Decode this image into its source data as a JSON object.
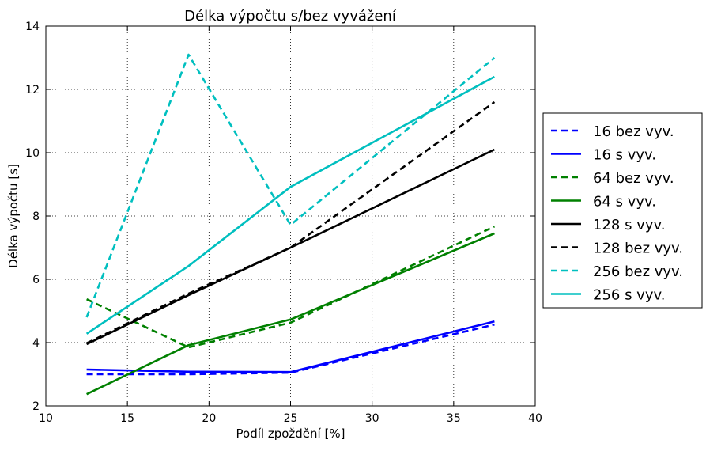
{
  "chart_data": {
    "type": "line",
    "title": "Délka výpočtu s/bez vyvážení",
    "xlabel": "Podíl zpoždění [%]",
    "ylabel": "Délka výpočtu [s]",
    "xlim": [
      10,
      40
    ],
    "ylim": [
      2,
      14
    ],
    "xticks": [
      10,
      15,
      20,
      25,
      30,
      35,
      40
    ],
    "yticks": [
      2,
      4,
      6,
      8,
      10,
      12,
      14
    ],
    "grid": true,
    "legend_position": "right-outside",
    "series": [
      {
        "name": "16 bez vyv.",
        "color": "#0000ff",
        "dashed": true,
        "x": [
          12.5,
          18.75,
          25,
          37.5
        ],
        "y": [
          3.0,
          3.0,
          3.05,
          4.57
        ]
      },
      {
        "name": "16 s vyv.",
        "color": "#0000ff",
        "dashed": false,
        "x": [
          12.5,
          18.75,
          25,
          37.5
        ],
        "y": [
          3.15,
          3.08,
          3.07,
          4.67
        ]
      },
      {
        "name": "64 bez vyv.",
        "color": "#008000",
        "dashed": true,
        "x": [
          12.5,
          18.75,
          25,
          37.5
        ],
        "y": [
          5.37,
          3.85,
          4.63,
          7.67
        ]
      },
      {
        "name": "64 s vyv.",
        "color": "#008000",
        "dashed": false,
        "x": [
          12.5,
          18.75,
          25,
          37.5
        ],
        "y": [
          2.37,
          3.92,
          4.73,
          7.45
        ]
      },
      {
        "name": "128 s vyv.",
        "color": "#000000",
        "dashed": false,
        "x": [
          12.5,
          18.75,
          25,
          37.5
        ],
        "y": [
          3.95,
          5.5,
          7.0,
          10.1
        ]
      },
      {
        "name": "128 bez vyv.",
        "color": "#000000",
        "dashed": true,
        "x": [
          12.5,
          18.75,
          25,
          37.5
        ],
        "y": [
          3.98,
          5.55,
          7.0,
          11.6
        ]
      },
      {
        "name": "256 bez vyv.",
        "color": "#00bfbf",
        "dashed": true,
        "x": [
          12.5,
          18.75,
          25,
          37.5
        ],
        "y": [
          4.8,
          13.1,
          7.72,
          13.0
        ]
      },
      {
        "name": "256 s vyv.",
        "color": "#00bfbf",
        "dashed": false,
        "x": [
          12.5,
          18.75,
          25,
          37.5
        ],
        "y": [
          4.28,
          6.42,
          8.92,
          12.4
        ]
      }
    ]
  }
}
